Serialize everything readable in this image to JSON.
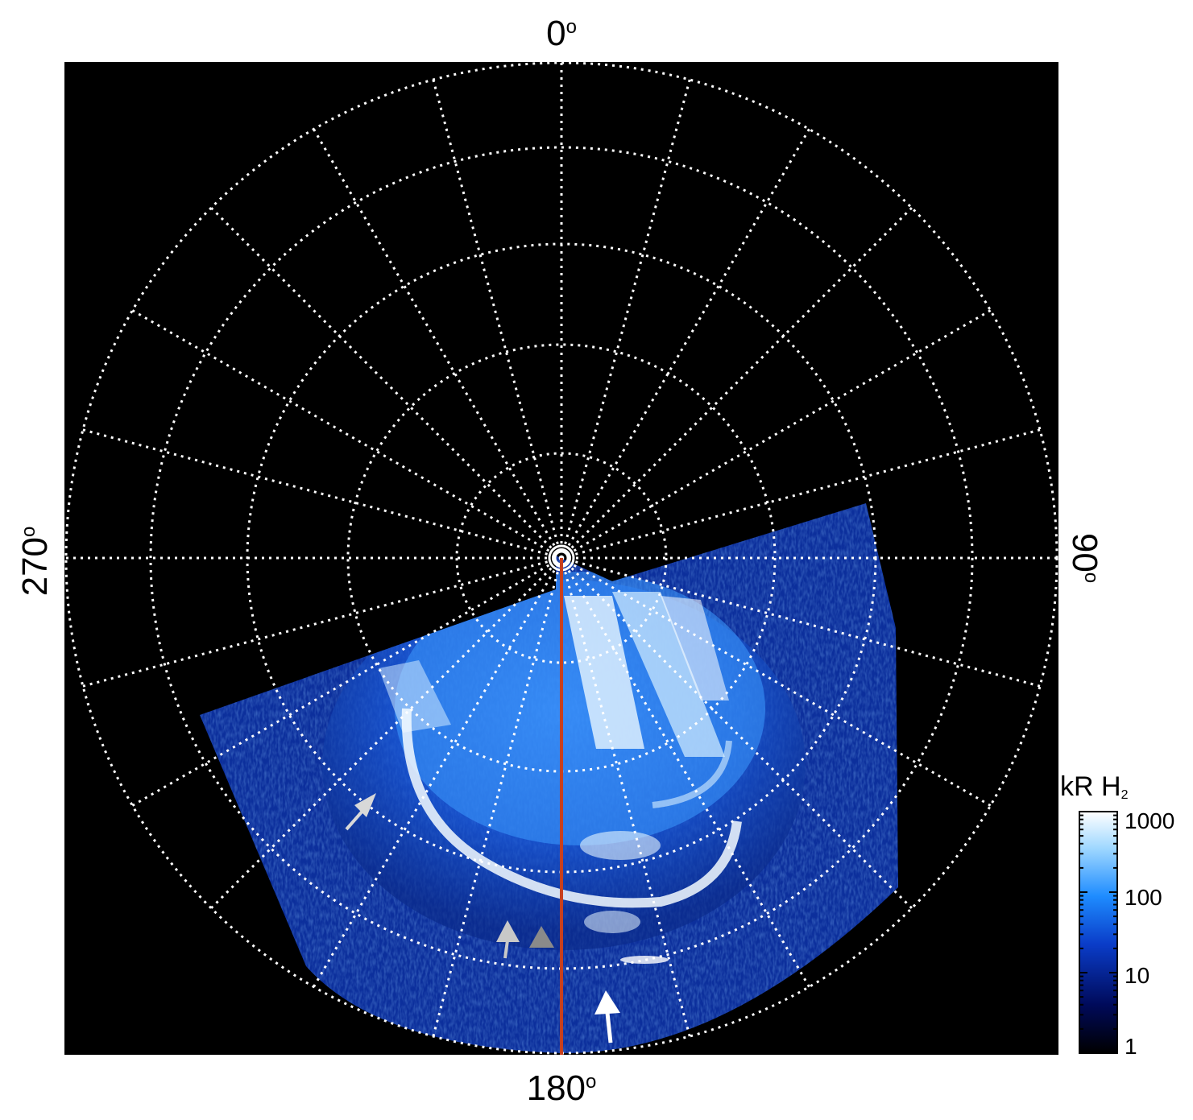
{
  "labels": {
    "top": "0",
    "bottom": "180",
    "left": "270",
    "right": "90",
    "degree_symbol": "o"
  },
  "colorbar": {
    "title_main": "kR H",
    "title_sub": "2",
    "ticks": [
      "1000",
      "100",
      "10",
      "1"
    ],
    "scale": "log",
    "range": [
      1,
      1000
    ],
    "colors": [
      "#000000",
      "#000a5a",
      "#0a3cc8",
      "#1e8cff",
      "#a0d8ff",
      "#ffffff"
    ]
  },
  "grid": {
    "style": "dotted",
    "color": "#ffffff",
    "meridian_count": 24,
    "latitude_circle_count": 6
  },
  "colors": {
    "background_panel": "#000000",
    "meridian_line": "#c8401e",
    "aurora_dim": "#0b2a8a",
    "aurora_mid": "#1e7cf0",
    "aurora_bright": "#e8f6ff"
  },
  "arrows": [
    {
      "color": "#d8d8d8"
    },
    {
      "color": "#c8c8c8"
    },
    {
      "color": "#8a8a8a"
    },
    {
      "color": "#ffffff"
    }
  ]
}
